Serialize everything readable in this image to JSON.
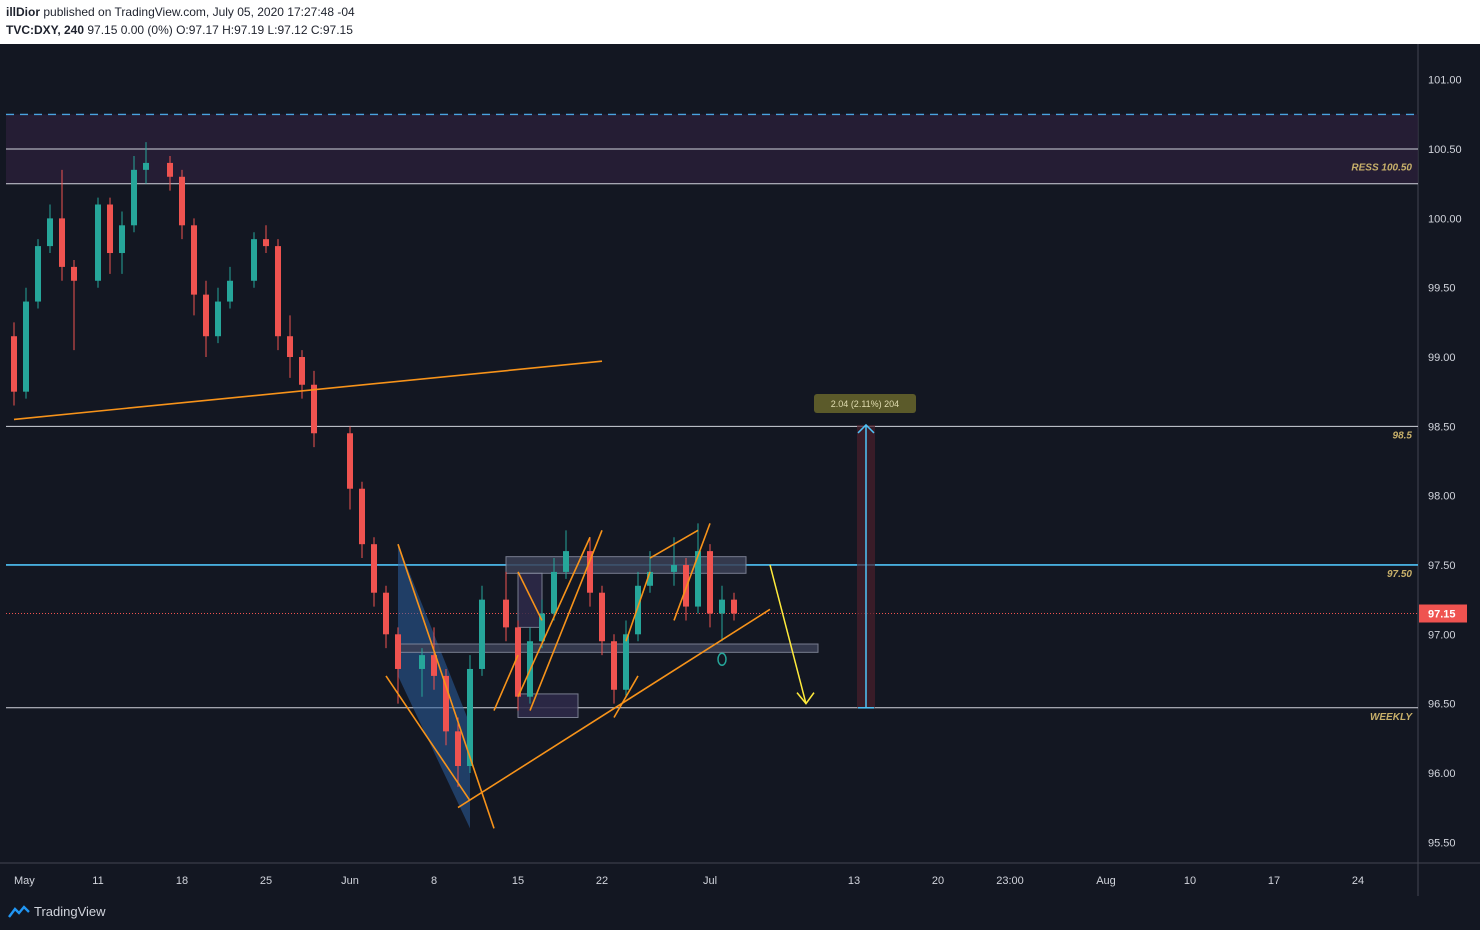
{
  "header": {
    "author": "illDior",
    "published": " published on TradingView.com, July 05, 2020 17:27:48 -04",
    "symbol": "TVC:DXY, 240",
    "ohlc": " 97.15 0.00 (0%) O:97.17 H:97.19 L:97.12 C:97.15"
  },
  "footer": {
    "brand": "TradingView"
  },
  "chart_data": {
    "type": "candlestick",
    "title": "TVC:DXY, 240",
    "x_ticks": [
      {
        "label": "May",
        "date": "2020-05-04"
      },
      {
        "label": "11",
        "date": "2020-05-11"
      },
      {
        "label": "18",
        "date": "2020-05-18"
      },
      {
        "label": "25",
        "date": "2020-05-25"
      },
      {
        "label": "Jun",
        "date": "2020-06-01"
      },
      {
        "label": "8",
        "date": "2020-06-08"
      },
      {
        "label": "15",
        "date": "2020-06-15"
      },
      {
        "label": "22",
        "date": "2020-06-22"
      },
      {
        "label": "Jul",
        "date": "2020-07-01"
      },
      {
        "label": "13",
        "date": "2020-07-13"
      },
      {
        "label": "20",
        "date": "2020-07-20"
      },
      {
        "label": "23:00",
        "date": "2020-07-26"
      },
      {
        "label": "Aug",
        "date": "2020-08-03"
      },
      {
        "label": "10",
        "date": "2020-08-10"
      },
      {
        "label": "17",
        "date": "2020-08-17"
      },
      {
        "label": "24",
        "date": "2020-08-24"
      }
    ],
    "y_ticks": [
      "101.00",
      "100.50",
      "100.00",
      "99.50",
      "99.00",
      "98.50",
      "98.00",
      "97.50",
      "97.00",
      "96.50",
      "96.00",
      "95.50"
    ],
    "ylim": [
      95.3,
      101.2
    ],
    "last_price": {
      "value": 97.15,
      "label": "97.15"
    },
    "horizontal_levels": [
      {
        "value": 100.75,
        "style": "dashed",
        "color": "#4aa3df"
      },
      {
        "value": 100.5,
        "color": "#d1d4dc"
      },
      {
        "value": 100.25,
        "color": "#d1d4dc",
        "label": "RESS 100.50"
      },
      {
        "value": 98.5,
        "color": "#d1d4dc",
        "label": "98.5"
      },
      {
        "value": 97.5,
        "color": "#4fc3f7",
        "label": "97.50"
      },
      {
        "value": 96.47,
        "color": "#d1d4dc",
        "label": "WEEKLY"
      }
    ],
    "resistance_zone": [
      100.25,
      100.75
    ],
    "measure": {
      "label": "2.04 (2.11%) 204",
      "from": 96.47,
      "to": 98.51,
      "date": "2020-07-14"
    },
    "colors": {
      "up": "#26a69a",
      "down": "#ef5350",
      "trend": "#f7931a",
      "projection": "#ffeb3b",
      "accent": "#4fc3f7"
    },
    "candles": [
      {
        "date": "2020-05-04",
        "ohlc": [
          99.15,
          99.25,
          98.65,
          98.75
        ]
      },
      {
        "date": "2020-05-05",
        "ohlc": [
          98.75,
          99.5,
          98.7,
          99.4
        ]
      },
      {
        "date": "2020-05-06",
        "ohlc": [
          99.4,
          99.85,
          99.35,
          99.8
        ]
      },
      {
        "date": "2020-05-07",
        "ohlc": [
          99.8,
          100.1,
          99.75,
          100.0
        ]
      },
      {
        "date": "2020-05-08",
        "ohlc": [
          100.0,
          100.35,
          99.55,
          99.65
        ]
      },
      {
        "date": "2020-05-09",
        "ohlc": [
          99.65,
          99.7,
          99.05,
          99.55
        ]
      },
      {
        "date": "2020-05-11",
        "ohlc": [
          99.55,
          100.15,
          99.5,
          100.1
        ]
      },
      {
        "date": "2020-05-12",
        "ohlc": [
          100.1,
          100.15,
          99.6,
          99.75
        ]
      },
      {
        "date": "2020-05-13",
        "ohlc": [
          99.75,
          100.05,
          99.6,
          99.95
        ]
      },
      {
        "date": "2020-05-14",
        "ohlc": [
          99.95,
          100.45,
          99.9,
          100.35
        ]
      },
      {
        "date": "2020-05-15",
        "ohlc": [
          100.35,
          100.55,
          100.25,
          100.4
        ]
      },
      {
        "date": "2020-05-17",
        "ohlc": [
          100.4,
          100.45,
          100.2,
          100.3
        ]
      },
      {
        "date": "2020-05-18",
        "ohlc": [
          100.3,
          100.35,
          99.85,
          99.95
        ]
      },
      {
        "date": "2020-05-19",
        "ohlc": [
          99.95,
          100.0,
          99.3,
          99.45
        ]
      },
      {
        "date": "2020-05-20",
        "ohlc": [
          99.45,
          99.55,
          99.0,
          99.15
        ]
      },
      {
        "date": "2020-05-21",
        "ohlc": [
          99.15,
          99.5,
          99.1,
          99.4
        ]
      },
      {
        "date": "2020-05-22",
        "ohlc": [
          99.4,
          99.65,
          99.35,
          99.55
        ]
      },
      {
        "date": "2020-05-24",
        "ohlc": [
          99.55,
          99.9,
          99.5,
          99.85
        ]
      },
      {
        "date": "2020-05-25",
        "ohlc": [
          99.85,
          99.95,
          99.75,
          99.8
        ]
      },
      {
        "date": "2020-05-26",
        "ohlc": [
          99.8,
          99.85,
          99.05,
          99.15
        ]
      },
      {
        "date": "2020-05-27",
        "ohlc": [
          99.15,
          99.3,
          98.85,
          99.0
        ]
      },
      {
        "date": "2020-05-28",
        "ohlc": [
          99.0,
          99.05,
          98.7,
          98.8
        ]
      },
      {
        "date": "2020-05-29",
        "ohlc": [
          98.8,
          98.9,
          98.35,
          98.45
        ]
      },
      {
        "date": "2020-06-01",
        "ohlc": [
          98.45,
          98.5,
          97.9,
          98.05
        ]
      },
      {
        "date": "2020-06-02",
        "ohlc": [
          98.05,
          98.1,
          97.55,
          97.65
        ]
      },
      {
        "date": "2020-06-03",
        "ohlc": [
          97.65,
          97.7,
          97.2,
          97.3
        ]
      },
      {
        "date": "2020-06-04",
        "ohlc": [
          97.3,
          97.35,
          96.9,
          97.0
        ]
      },
      {
        "date": "2020-06-05",
        "ohlc": [
          97.0,
          97.05,
          96.5,
          96.75
        ]
      },
      {
        "date": "2020-06-07",
        "ohlc": [
          96.75,
          96.9,
          96.55,
          96.85
        ]
      },
      {
        "date": "2020-06-08",
        "ohlc": [
          96.85,
          97.05,
          96.6,
          96.7
        ]
      },
      {
        "date": "2020-06-09",
        "ohlc": [
          96.7,
          96.75,
          96.2,
          96.3
        ]
      },
      {
        "date": "2020-06-10",
        "ohlc": [
          96.3,
          96.4,
          95.9,
          96.05
        ]
      },
      {
        "date": "2020-06-11",
        "ohlc": [
          96.05,
          96.85,
          96.0,
          96.75
        ]
      },
      {
        "date": "2020-06-12",
        "ohlc": [
          96.75,
          97.35,
          96.7,
          97.25
        ]
      },
      {
        "date": "2020-06-14",
        "ohlc": [
          97.25,
          97.45,
          96.95,
          97.05
        ]
      },
      {
        "date": "2020-06-15",
        "ohlc": [
          97.05,
          97.1,
          96.45,
          96.55
        ]
      },
      {
        "date": "2020-06-16",
        "ohlc": [
          96.55,
          97.05,
          96.5,
          96.95
        ]
      },
      {
        "date": "2020-06-17",
        "ohlc": [
          96.95,
          97.25,
          96.9,
          97.15
        ]
      },
      {
        "date": "2020-06-18",
        "ohlc": [
          97.15,
          97.55,
          97.1,
          97.45
        ]
      },
      {
        "date": "2020-06-19",
        "ohlc": [
          97.45,
          97.75,
          97.4,
          97.6
        ]
      },
      {
        "date": "2020-06-21",
        "ohlc": [
          97.6,
          97.7,
          97.2,
          97.3
        ]
      },
      {
        "date": "2020-06-22",
        "ohlc": [
          97.3,
          97.35,
          96.85,
          96.95
        ]
      },
      {
        "date": "2020-06-23",
        "ohlc": [
          96.95,
          97.0,
          96.5,
          96.6
        ]
      },
      {
        "date": "2020-06-24",
        "ohlc": [
          96.6,
          97.1,
          96.55,
          97.0
        ]
      },
      {
        "date": "2020-06-25",
        "ohlc": [
          97.0,
          97.45,
          96.95,
          97.35
        ]
      },
      {
        "date": "2020-06-26",
        "ohlc": [
          97.35,
          97.6,
          97.3,
          97.45
        ]
      },
      {
        "date": "2020-06-28",
        "ohlc": [
          97.45,
          97.7,
          97.35,
          97.5
        ]
      },
      {
        "date": "2020-06-29",
        "ohlc": [
          97.5,
          97.55,
          97.1,
          97.2
        ]
      },
      {
        "date": "2020-06-30",
        "ohlc": [
          97.2,
          97.8,
          97.15,
          97.6
        ]
      },
      {
        "date": "2020-07-01",
        "ohlc": [
          97.6,
          97.65,
          97.05,
          97.15
        ]
      },
      {
        "date": "2020-07-02",
        "ohlc": [
          97.15,
          97.35,
          96.95,
          97.25
        ]
      },
      {
        "date": "2020-07-03",
        "ohlc": [
          97.25,
          97.3,
          97.1,
          97.15
        ]
      }
    ]
  }
}
